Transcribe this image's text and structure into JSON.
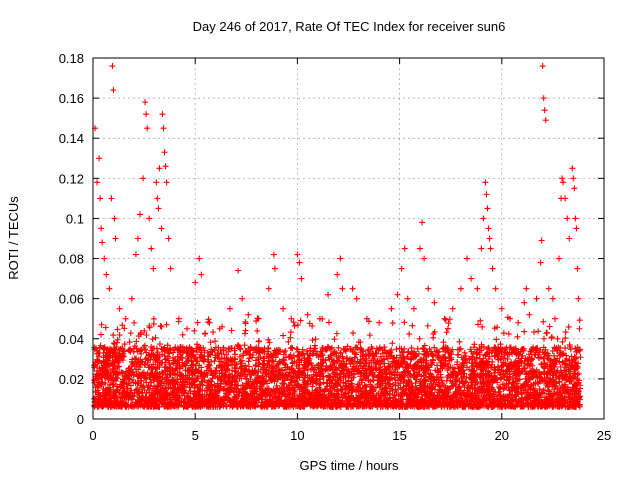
{
  "chart_data": {
    "type": "scatter",
    "title": "Day 246 of 2017, Rate Of TEC Index for receiver sun6",
    "xlabel": "GPS time / hours",
    "ylabel": "ROTI / TECUs",
    "xlim": [
      0,
      25
    ],
    "ylim": [
      0,
      0.18
    ],
    "xticks": [
      0,
      5,
      10,
      15,
      20,
      25
    ],
    "yticks": [
      0,
      0.02,
      0.04,
      0.06,
      0.08,
      0.1,
      0.12,
      0.14,
      0.16,
      0.18
    ],
    "xtick_labels": [
      "0",
      "5",
      "10",
      "15",
      "20",
      "25"
    ],
    "ytick_labels": [
      "0",
      "0.02",
      "0.04",
      "0.06",
      "0.08",
      "0.1",
      "0.12",
      "0.14",
      "0.16",
      "0.18"
    ],
    "grid": true,
    "marker": "+",
    "marker_color": "#ff0000",
    "series": [
      {
        "name": "ROTI",
        "points": [
          [
            0.1,
            0.145
          ],
          [
            0.2,
            0.118
          ],
          [
            0.3,
            0.13
          ],
          [
            0.35,
            0.11
          ],
          [
            0.4,
            0.095
          ],
          [
            0.45,
            0.088
          ],
          [
            0.55,
            0.08
          ],
          [
            0.65,
            0.072
          ],
          [
            0.8,
            0.065
          ],
          [
            0.95,
            0.176
          ],
          [
            1.0,
            0.164
          ],
          [
            0.9,
            0.11
          ],
          [
            1.05,
            0.1
          ],
          [
            1.1,
            0.09
          ],
          [
            1.3,
            0.055
          ],
          [
            1.6,
            0.05
          ],
          [
            1.9,
            0.06
          ],
          [
            2.1,
            0.082
          ],
          [
            2.2,
            0.09
          ],
          [
            2.3,
            0.102
          ],
          [
            2.45,
            0.12
          ],
          [
            2.55,
            0.158
          ],
          [
            2.6,
            0.152
          ],
          [
            2.65,
            0.145
          ],
          [
            2.75,
            0.1
          ],
          [
            2.85,
            0.085
          ],
          [
            2.95,
            0.075
          ],
          [
            3.1,
            0.118
          ],
          [
            3.15,
            0.11
          ],
          [
            3.2,
            0.105
          ],
          [
            3.25,
            0.125
          ],
          [
            3.35,
            0.095
          ],
          [
            3.4,
            0.152
          ],
          [
            3.45,
            0.145
          ],
          [
            3.5,
            0.133
          ],
          [
            3.55,
            0.126
          ],
          [
            3.6,
            0.118
          ],
          [
            3.7,
            0.09
          ],
          [
            3.8,
            0.075
          ],
          [
            4.2,
            0.05
          ],
          [
            4.6,
            0.045
          ],
          [
            5.0,
            0.068
          ],
          [
            5.2,
            0.08
          ],
          [
            5.3,
            0.072
          ],
          [
            5.7,
            0.048
          ],
          [
            6.2,
            0.045
          ],
          [
            6.7,
            0.055
          ],
          [
            7.1,
            0.074
          ],
          [
            7.3,
            0.06
          ],
          [
            7.6,
            0.052
          ],
          [
            8.1,
            0.05
          ],
          [
            8.6,
            0.065
          ],
          [
            8.85,
            0.082
          ],
          [
            8.9,
            0.075
          ],
          [
            9.3,
            0.055
          ],
          [
            9.7,
            0.05
          ],
          [
            10.0,
            0.082
          ],
          [
            10.1,
            0.078
          ],
          [
            10.2,
            0.07
          ],
          [
            10.5,
            0.052
          ],
          [
            11.1,
            0.05
          ],
          [
            11.5,
            0.062
          ],
          [
            11.95,
            0.072
          ],
          [
            12.1,
            0.08
          ],
          [
            12.2,
            0.065
          ],
          [
            12.7,
            0.065
          ],
          [
            12.9,
            0.06
          ],
          [
            13.4,
            0.05
          ],
          [
            14.0,
            0.048
          ],
          [
            14.6,
            0.055
          ],
          [
            14.9,
            0.062
          ],
          [
            15.1,
            0.075
          ],
          [
            15.25,
            0.085
          ],
          [
            15.4,
            0.06
          ],
          [
            15.7,
            0.055
          ],
          [
            16.0,
            0.085
          ],
          [
            16.1,
            0.098
          ],
          [
            16.2,
            0.08
          ],
          [
            16.4,
            0.065
          ],
          [
            16.7,
            0.058
          ],
          [
            17.2,
            0.05
          ],
          [
            17.6,
            0.055
          ],
          [
            18.0,
            0.065
          ],
          [
            18.3,
            0.08
          ],
          [
            18.5,
            0.07
          ],
          [
            18.8,
            0.065
          ],
          [
            19.0,
            0.085
          ],
          [
            19.1,
            0.1
          ],
          [
            19.2,
            0.118
          ],
          [
            19.25,
            0.112
          ],
          [
            19.3,
            0.105
          ],
          [
            19.35,
            0.095
          ],
          [
            19.4,
            0.09
          ],
          [
            19.45,
            0.085
          ],
          [
            19.55,
            0.075
          ],
          [
            19.7,
            0.065
          ],
          [
            20.0,
            0.055
          ],
          [
            20.4,
            0.05
          ],
          [
            20.8,
            0.048
          ],
          [
            21.1,
            0.058
          ],
          [
            21.2,
            0.065
          ],
          [
            21.35,
            0.052
          ],
          [
            21.7,
            0.06
          ],
          [
            21.9,
            0.078
          ],
          [
            21.95,
            0.089
          ],
          [
            22.0,
            0.176
          ],
          [
            22.05,
            0.16
          ],
          [
            22.1,
            0.154
          ],
          [
            22.15,
            0.149
          ],
          [
            22.3,
            0.065
          ],
          [
            22.5,
            0.06
          ],
          [
            22.6,
            0.05
          ],
          [
            22.8,
            0.08
          ],
          [
            22.9,
            0.11
          ],
          [
            22.95,
            0.12
          ],
          [
            23.0,
            0.118
          ],
          [
            23.1,
            0.11
          ],
          [
            23.2,
            0.1
          ],
          [
            23.3,
            0.09
          ],
          [
            23.45,
            0.125
          ],
          [
            23.5,
            0.12
          ],
          [
            23.55,
            0.115
          ],
          [
            23.6,
            0.1
          ],
          [
            23.65,
            0.095
          ],
          [
            23.7,
            0.075
          ],
          [
            23.75,
            0.06
          ],
          [
            23.8,
            0.045
          ]
        ]
      }
    ]
  }
}
